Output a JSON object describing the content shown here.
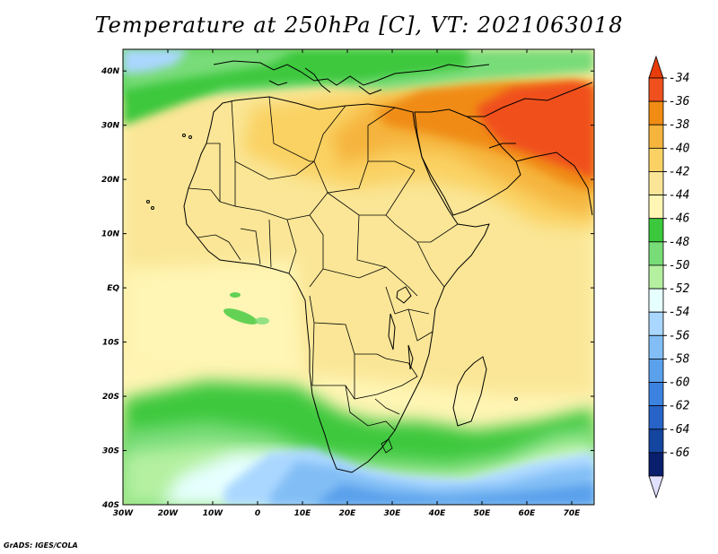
{
  "title": "Temperature at 250hPa [C], VT: 2021063018",
  "credit": "GrADS: IGES/COLA",
  "map": {
    "lon_ticks": [
      "30W",
      "20W",
      "10W",
      "0",
      "10E",
      "20E",
      "30E",
      "40E",
      "50E",
      "60E",
      "70E"
    ],
    "lat_ticks": [
      "40N",
      "30N",
      "20N",
      "10N",
      "EQ",
      "10S",
      "20S",
      "30S",
      "40S"
    ],
    "extent": {
      "lon": [
        -30,
        75
      ],
      "lat": [
        -40,
        44
      ]
    }
  },
  "colorbar": {
    "labels": [
      "-34",
      "-36",
      "-38",
      "-40",
      "-42",
      "-44",
      "-46",
      "-48",
      "-50",
      "-52",
      "-54",
      "-56",
      "-58",
      "-60",
      "-62",
      "-64",
      "-66"
    ],
    "colors": [
      "#f0501e",
      "#f08c14",
      "#f5b43c",
      "#fad264",
      "#fae696",
      "#fff5b4",
      "#3cc83c",
      "#78dc78",
      "#b4f0a0",
      "#e6ffff",
      "#aad7ff",
      "#82bef5",
      "#5aa0eb",
      "#3c82e1",
      "#2864c8",
      "#1446a0",
      "#0a1e6e"
    ]
  },
  "colors": {
    "above": "#e83c0a",
    "below": "#e0e0ff"
  }
}
